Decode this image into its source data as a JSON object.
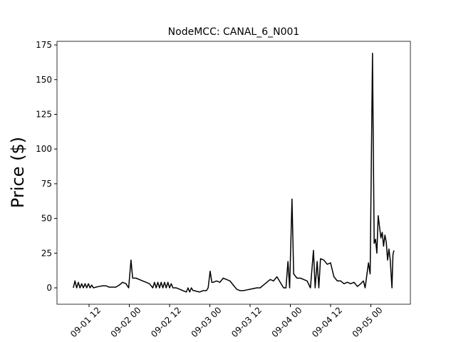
{
  "chart_data": {
    "type": "line",
    "title": "NodeMCC: CANAL_6_N001",
    "y_label": "Price ($)",
    "x": [
      7.3,
      7.8,
      8.3,
      8.8,
      9.3,
      9.8,
      10.3,
      10.8,
      11.3,
      11.8,
      12.3,
      12.8,
      13.3,
      14,
      15,
      16,
      17,
      18,
      19,
      20,
      21,
      22,
      23,
      23.8,
      24.5,
      25,
      26,
      27,
      28,
      29,
      30,
      31,
      31.5,
      32,
      32.5,
      33,
      33.5,
      34,
      34.5,
      35,
      35.5,
      36,
      36.5,
      37,
      38,
      39,
      40,
      41,
      41.5,
      42,
      42.5,
      43,
      43.5,
      44,
      45,
      46,
      47,
      47.5,
      48.1,
      48.6,
      49,
      50,
      51,
      52,
      53,
      54,
      55,
      56,
      57,
      58,
      59,
      60,
      61,
      62,
      63,
      64,
      65,
      66,
      67,
      68,
      69,
      70,
      70.7,
      71.3,
      71.8,
      72.5,
      73,
      74,
      75,
      76,
      77,
      78,
      78.9,
      79.4,
      80,
      80.5,
      81,
      82,
      83,
      84,
      85,
      86,
      87,
      88,
      89,
      90,
      91,
      92,
      93,
      93.8,
      94.3,
      95.3,
      95.8,
      96.5,
      97,
      97.4,
      97.8,
      98.2,
      98.6,
      99,
      99.4,
      99.8,
      100.2,
      100.6,
      101,
      101.4,
      101.8,
      102.3,
      102.6,
      102.9
    ],
    "series": [
      {
        "name": "CANAL_6_N001",
        "color": "#000000",
        "values": [
          0,
          5,
          0,
          4,
          0,
          3,
          0,
          3,
          0,
          3,
          0,
          2,
          0,
          0.5,
          1,
          1.5,
          1.5,
          0.5,
          0.5,
          0.5,
          2,
          4,
          3,
          0,
          20,
          7,
          7,
          6,
          5,
          4,
          3,
          0,
          4,
          0,
          4,
          0,
          4,
          0,
          4,
          0,
          4,
          0,
          3,
          0,
          0,
          -1,
          -2,
          -3,
          0,
          -3,
          0,
          -2,
          -2,
          -2.5,
          -3,
          -2,
          -2,
          0,
          12,
          4,
          4,
          5,
          4,
          7,
          6,
          5,
          2,
          -1,
          -2,
          -2,
          -1.5,
          -1,
          -0.5,
          0,
          0,
          2,
          4,
          6,
          5,
          8,
          4,
          0,
          0,
          19,
          0,
          64,
          10,
          7,
          7,
          6,
          5,
          0,
          27,
          0,
          19,
          0,
          21,
          20,
          17,
          18,
          8,
          5,
          5,
          3,
          4,
          3,
          4,
          1,
          3,
          5,
          0,
          18,
          10,
          169,
          32,
          35,
          25,
          52,
          44,
          36,
          40,
          30,
          38,
          33,
          20,
          28,
          20,
          0,
          24,
          27
        ]
      }
    ],
    "xlim": [
      2.44,
      107.8
    ],
    "xticks": [
      {
        "value": 12,
        "label": "09-01 12"
      },
      {
        "value": 24,
        "label": "09-02 00"
      },
      {
        "value": 36,
        "label": "09-02 12"
      },
      {
        "value": 48,
        "label": "09-03 00"
      },
      {
        "value": 60,
        "label": "09-03 12"
      },
      {
        "value": 72,
        "label": "09-04 00"
      },
      {
        "value": 84,
        "label": "09-04 12"
      },
      {
        "value": 96,
        "label": "09-05 00"
      }
    ],
    "ylim": [
      -11.8,
      177.6
    ],
    "yticks": [
      0,
      25,
      50,
      75,
      100,
      125,
      150,
      175
    ],
    "grid": false
  }
}
